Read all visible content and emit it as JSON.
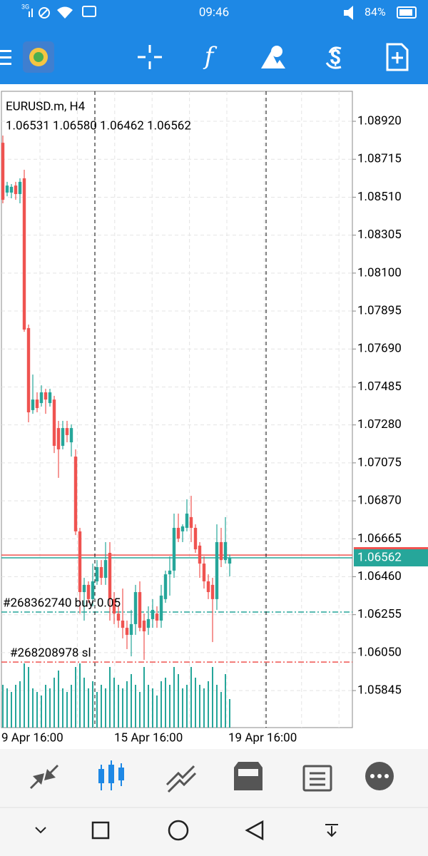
{
  "status_bar": {
    "network": "3G",
    "time": "09:46",
    "battery": "84%"
  },
  "chart_data": {
    "type": "candlestick",
    "title": "EURUSD.m, H4",
    "ohlc_text": "1.06531 1.06580 1.06462 1.06562",
    "ylim": [
      1.05645,
      1.09082
    ],
    "yticks": [
      {
        "value": 1.0892,
        "label": "1.08920"
      },
      1.08715,
      {
        "value": 1.0851,
        "label": "1.08510"
      },
      1.08305,
      {
        "value": 1.081,
        "label": "1.08100"
      },
      1.07895,
      {
        "value": 1.0769,
        "label": "1.07690"
      },
      1.07485,
      {
        "value": 1.0728,
        "label": "1.07280"
      },
      1.07075,
      {
        "value": 1.0687,
        "label": "1.06870"
      },
      1.06665,
      {
        "value": 1.0646,
        "label": "1.06460"
      },
      1.06255,
      {
        "value": 1.0605,
        "label": "1.06050"
      },
      1.05845
    ],
    "x_labels": [
      "9 Apr 16:00",
      "15 Apr 16:00",
      "19 Apr 16:00"
    ],
    "grid": true,
    "up_color": "#26a69a",
    "down_color": "#ef5350",
    "open": [
      1.08804,
      1.08535,
      1.08535,
      1.08573,
      1.08527,
      1.08612,
      1.07803,
      1.0736,
      1.07417,
      1.07398,
      1.07456,
      1.07398,
      1.07417,
      1.07263,
      1.07167,
      1.07263,
      1.07186,
      1.07109,
      1.06705,
      1.06377,
      1.06416,
      1.06339,
      1.06435,
      1.06512,
      1.06454,
      1.06589,
      1.06339,
      1.06261,
      1.06223,
      1.06184,
      1.06146,
      1.06204,
      1.06377,
      1.06223,
      1.06184,
      1.06231,
      1.06261,
      1.06223,
      1.06339,
      1.06473,
      1.06493,
      1.06724,
      1.06705,
      1.06724,
      1.06782,
      1.06724,
      1.06628,
      1.06531,
      1.06435,
      1.06416,
      1.06339,
      1.06647,
      1.0655,
      1.06531
    ],
    "high": [
      1.08843,
      1.08593,
      1.08581,
      1.08593,
      1.08612,
      1.08658,
      1.07822,
      1.07552,
      1.07456,
      1.07494,
      1.07475,
      1.07475,
      1.07437,
      1.07302,
      1.07302,
      1.07302,
      1.07283,
      1.07148,
      1.06724,
      1.06454,
      1.06435,
      1.06531,
      1.0655,
      1.0655,
      1.06647,
      1.06647,
      1.06377,
      1.063,
      1.06396,
      1.06223,
      1.06281,
      1.06416,
      1.06435,
      1.06261,
      1.063,
      1.06339,
      1.063,
      1.06416,
      1.06493,
      1.0657,
      1.06801,
      1.06801,
      1.06743,
      1.06878,
      1.06897,
      1.06743,
      1.06647,
      1.0657,
      1.06473,
      1.06454,
      1.06743,
      1.06724,
      1.06782,
      1.0658
    ],
    "low": [
      1.08477,
      1.08515,
      1.08504,
      1.08496,
      1.08477,
      1.07783,
      1.07294,
      1.0734,
      1.07348,
      1.07379,
      1.0734,
      1.07379,
      1.07128,
      1.06994,
      1.07148,
      1.07186,
      1.07109,
      1.06685,
      1.06261,
      1.06223,
      1.06319,
      1.063,
      1.06416,
      1.06416,
      1.06416,
      1.06223,
      1.06204,
      1.06184,
      1.06127,
      1.06069,
      1.0603,
      1.06146,
      1.06165,
      1.06011,
      1.06146,
      1.06184,
      1.06184,
      1.06184,
      1.06319,
      1.06358,
      1.06454,
      1.06647,
      1.06647,
      1.06705,
      1.06647,
      1.06589,
      1.06454,
      1.06396,
      1.06339,
      1.06107,
      1.06281,
      1.06512,
      1.06531,
      1.06462
    ],
    "close": [
      1.08496,
      1.08573,
      1.08566,
      1.08527,
      1.08593,
      1.07795,
      1.07348,
      1.07417,
      1.07371,
      1.07456,
      1.07417,
      1.07456,
      1.07167,
      1.07148,
      1.07263,
      1.07225,
      1.07263,
      1.06705,
      1.06377,
      1.06416,
      1.06339,
      1.06435,
      1.06512,
      1.06454,
      1.0655,
      1.06339,
      1.06261,
      1.06223,
      1.06184,
      1.06146,
      1.06204,
      1.06377,
      1.06184,
      1.06165,
      1.06231,
      1.06281,
      1.06223,
      1.06358,
      1.06473,
      1.06493,
      1.06724,
      1.06666,
      1.06732,
      1.06801,
      1.06724,
      1.06608,
      1.06531,
      1.06435,
      1.06377,
      1.06339,
      1.06647,
      1.0655,
      1.06647,
      1.06562
    ],
    "volumes": [
      60,
      55,
      50,
      60,
      65,
      90,
      85,
      55,
      50,
      45,
      60,
      55,
      70,
      80,
      55,
      50,
      60,
      85,
      90,
      70,
      55,
      65,
      50,
      60,
      55,
      85,
      70,
      60,
      55,
      65,
      75,
      60,
      50,
      85,
      60,
      55,
      45,
      65,
      70,
      60,
      85,
      75,
      55,
      60,
      85,
      70,
      60,
      55,
      65,
      85,
      60,
      50,
      75,
      40
    ],
    "volume_lim": [
      0,
      100
    ],
    "volume_color": "#26a69a",
    "current_price": 1.06562,
    "ask_price": 1.06577,
    "orders": [
      {
        "label": "#268362740 buy 0.05",
        "price": 1.06269,
        "color": "#26a69a"
      },
      {
        "label": "#268208978 sl",
        "price": 1.05999,
        "color": "#ef5350"
      }
    ]
  }
}
